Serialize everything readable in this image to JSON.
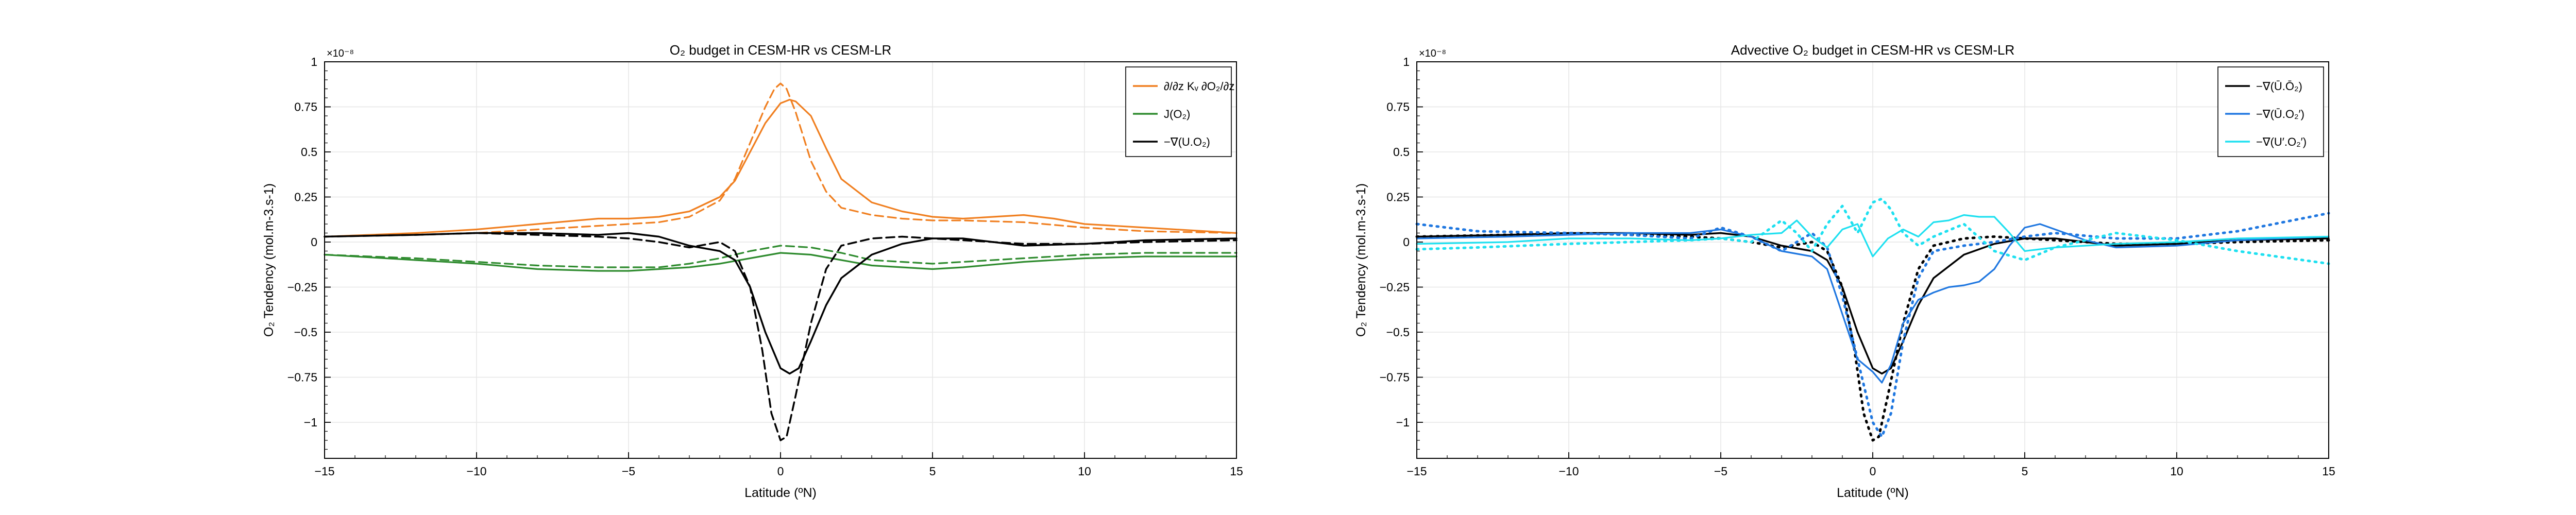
{
  "chart_data": [
    {
      "type": "line",
      "title": "O₂ budget in CESM-HR vs CESM-LR",
      "xlabel": "Latitude (ºN)",
      "ylabel": "O₂ Tendency (mol.m-3.s-1)",
      "y_multiplier": "×10⁻⁸",
      "xlim": [
        -15,
        15
      ],
      "ylim": [
        -1.2,
        1.0
      ],
      "xticks": [
        "−15",
        "−10",
        "−5",
        "0",
        "5",
        "10",
        "15"
      ],
      "yticks": [
        "1",
        "0.75",
        "0.5",
        "0.25",
        "0",
        "−0.25",
        "−0.5",
        "−0.75",
        "−1"
      ],
      "legend_position": "top-right",
      "grid": true,
      "series": [
        {
          "name": "∂/∂z Kv ∂O₂/∂z (HR)",
          "legend_label": "∂/∂z Kᵥ ∂O₂/∂z",
          "color": "#f07f20",
          "dash": "solid",
          "x": [
            -15,
            -12,
            -10,
            -8,
            -6,
            -5,
            -4,
            -3,
            -2,
            -1.5,
            -1,
            -0.5,
            0,
            0.3,
            0.5,
            1,
            1.5,
            2,
            3,
            4,
            5,
            6,
            7,
            8,
            9,
            10,
            12,
            15
          ],
          "y": [
            0.03,
            0.05,
            0.07,
            0.1,
            0.13,
            0.13,
            0.14,
            0.17,
            0.25,
            0.34,
            0.5,
            0.66,
            0.77,
            0.79,
            0.78,
            0.7,
            0.52,
            0.35,
            0.22,
            0.17,
            0.14,
            0.13,
            0.14,
            0.15,
            0.13,
            0.1,
            0.08,
            0.05
          ]
        },
        {
          "name": "∂/∂z Kv ∂O₂/∂z (LR)",
          "color": "#f07f20",
          "dash": "dashed",
          "x": [
            -15,
            -12,
            -10,
            -8,
            -6,
            -5,
            -4,
            -3,
            -2,
            -1.5,
            -1,
            -0.5,
            -0.2,
            0,
            0.2,
            0.5,
            1,
            1.5,
            2,
            3,
            4,
            5,
            6,
            8,
            10,
            12,
            15
          ],
          "y": [
            0.03,
            0.04,
            0.05,
            0.07,
            0.09,
            0.1,
            0.11,
            0.14,
            0.23,
            0.35,
            0.55,
            0.75,
            0.85,
            0.88,
            0.85,
            0.72,
            0.45,
            0.28,
            0.19,
            0.15,
            0.13,
            0.12,
            0.12,
            0.11,
            0.08,
            0.06,
            0.05
          ]
        },
        {
          "name": "J(O₂) (HR)",
          "legend_label": "J(O₂)",
          "color": "#2e8b2e",
          "dash": "solid",
          "x": [
            -15,
            -12,
            -10,
            -8,
            -6,
            -5,
            -4,
            -3,
            -2,
            -1,
            0,
            1,
            2,
            3,
            4,
            5,
            6,
            8,
            10,
            12,
            15
          ],
          "y": [
            -0.07,
            -0.1,
            -0.12,
            -0.15,
            -0.16,
            -0.16,
            -0.15,
            -0.14,
            -0.12,
            -0.09,
            -0.06,
            -0.07,
            -0.1,
            -0.13,
            -0.14,
            -0.15,
            -0.14,
            -0.11,
            -0.09,
            -0.08,
            -0.08
          ]
        },
        {
          "name": "J(O₂) (LR)",
          "color": "#2e8b2e",
          "dash": "dashed",
          "x": [
            -15,
            -12,
            -10,
            -8,
            -6,
            -5,
            -4,
            -3,
            -2,
            -1,
            0,
            1,
            2,
            3,
            4,
            5,
            6,
            8,
            10,
            12,
            15
          ],
          "y": [
            -0.07,
            -0.09,
            -0.11,
            -0.13,
            -0.14,
            -0.14,
            -0.14,
            -0.12,
            -0.09,
            -0.05,
            -0.02,
            -0.03,
            -0.06,
            -0.1,
            -0.11,
            -0.12,
            -0.11,
            -0.09,
            -0.07,
            -0.06,
            -0.06
          ]
        },
        {
          "name": "−∇(U.O₂) (HR)",
          "legend_label": "−∇(U.O₂)",
          "color": "#000000",
          "dash": "solid",
          "x": [
            -15,
            -12,
            -10,
            -8,
            -6,
            -5,
            -4,
            -3,
            -2,
            -1.5,
            -1,
            -0.5,
            0,
            0.3,
            0.6,
            1,
            1.5,
            2,
            3,
            4,
            5,
            6,
            7,
            8,
            10,
            12,
            15
          ],
          "y": [
            0.03,
            0.04,
            0.05,
            0.05,
            0.04,
            0.05,
            0.03,
            -0.02,
            -0.05,
            -0.1,
            -0.25,
            -0.5,
            -0.7,
            -0.73,
            -0.7,
            -0.55,
            -0.35,
            -0.2,
            -0.07,
            -0.01,
            0.02,
            0.02,
            0.0,
            -0.02,
            -0.01,
            0.01,
            0.02
          ]
        },
        {
          "name": "−∇(U.O₂) (LR)",
          "color": "#000000",
          "dash": "dashed",
          "x": [
            -15,
            -12,
            -10,
            -8,
            -6,
            -5,
            -4,
            -3,
            -2,
            -1.5,
            -1,
            -0.6,
            -0.3,
            0,
            0.2,
            0.5,
            1,
            1.5,
            2,
            3,
            4,
            5,
            6,
            8,
            10,
            12,
            15
          ],
          "y": [
            0.03,
            0.04,
            0.05,
            0.04,
            0.03,
            0.02,
            0.0,
            -0.03,
            0.0,
            -0.05,
            -0.25,
            -0.6,
            -0.95,
            -1.1,
            -1.08,
            -0.85,
            -0.45,
            -0.15,
            -0.02,
            0.02,
            0.03,
            0.02,
            0.01,
            -0.01,
            -0.01,
            0.0,
            0.01
          ]
        }
      ]
    },
    {
      "type": "line",
      "title": "Advective O₂ budget in CESM-HR vs CESM-LR",
      "xlabel": "Latitude (ºN)",
      "ylabel": "O₂ Tendency (mol.m-3.s-1)",
      "y_multiplier": "×10⁻⁸",
      "xlim": [
        -15,
        15
      ],
      "ylim": [
        -1.2,
        1.0
      ],
      "xticks": [
        "−15",
        "−10",
        "−5",
        "0",
        "5",
        "10",
        "15"
      ],
      "yticks": [
        "1",
        "0.75",
        "0.5",
        "0.25",
        "0",
        "−0.25",
        "−0.5",
        "−0.75",
        "−1"
      ],
      "legend_position": "top-right",
      "grid": true,
      "series": [
        {
          "name": "−∇(Ū.Ō₂) (HR)",
          "legend_label": "−∇(Ū.Ō₂)",
          "color": "#000000",
          "dash": "solid",
          "x": [
            -15,
            -12,
            -10,
            -8,
            -6,
            -5,
            -4,
            -3,
            -2,
            -1.5,
            -1,
            -0.5,
            0,
            0.3,
            0.6,
            1,
            1.5,
            2,
            3,
            4,
            5,
            6,
            7,
            8,
            10,
            12,
            15
          ],
          "y": [
            0.03,
            0.04,
            0.05,
            0.05,
            0.04,
            0.05,
            0.03,
            -0.02,
            -0.05,
            -0.1,
            -0.25,
            -0.5,
            -0.7,
            -0.73,
            -0.7,
            -0.55,
            -0.35,
            -0.2,
            -0.07,
            -0.01,
            0.02,
            0.02,
            0.0,
            -0.02,
            -0.01,
            0.01,
            0.02
          ]
        },
        {
          "name": "−∇(Ū.Ō₂) (LR)",
          "color": "#000000",
          "dash": "dotted",
          "x": [
            -15,
            -12,
            -10,
            -8,
            -6,
            -5,
            -4,
            -3,
            -2,
            -1.5,
            -1,
            -0.6,
            -0.3,
            0,
            0.2,
            0.5,
            1,
            1.5,
            2,
            3,
            4,
            5,
            6,
            8,
            10,
            12,
            15
          ],
          "y": [
            0.03,
            0.04,
            0.05,
            0.04,
            0.03,
            0.02,
            0.0,
            -0.03,
            0.0,
            -0.05,
            -0.25,
            -0.6,
            -0.95,
            -1.1,
            -1.08,
            -0.85,
            -0.45,
            -0.15,
            -0.02,
            0.02,
            0.03,
            0.02,
            0.01,
            -0.01,
            -0.01,
            0.0,
            0.01
          ]
        },
        {
          "name": "−∇(U.O₂) eddy-mean (HR)",
          "legend_label": "−∇(Ū.O₂′)",
          "color": "#1f77e0",
          "dash": "solid",
          "x": [
            -15,
            -12,
            -10,
            -8,
            -6,
            -5,
            -4,
            -3,
            -2,
            -1.5,
            -1,
            -0.5,
            0,
            0.3,
            0.6,
            1,
            1.5,
            2,
            2.5,
            3,
            3.5,
            4,
            4.5,
            5,
            5.5,
            6,
            7,
            8,
            10,
            12,
            15
          ],
          "y": [
            0.02,
            0.03,
            0.04,
            0.05,
            0.05,
            0.07,
            0.03,
            -0.05,
            -0.08,
            -0.15,
            -0.4,
            -0.65,
            -0.72,
            -0.78,
            -0.68,
            -0.45,
            -0.32,
            -0.28,
            -0.25,
            -0.24,
            -0.22,
            -0.15,
            -0.02,
            0.08,
            0.1,
            0.07,
            0.01,
            -0.03,
            -0.02,
            0.01,
            0.03
          ]
        },
        {
          "name": "−∇(U.O₂) eddy-mean (LR)",
          "color": "#1f77e0",
          "dash": "dotted",
          "x": [
            -15,
            -13,
            -10,
            -8,
            -6,
            -5,
            -4,
            -3,
            -2,
            -1.5,
            -1,
            -0.5,
            0,
            0.3,
            0.6,
            1,
            1.5,
            2,
            3,
            4,
            5,
            6,
            8,
            10,
            12,
            15
          ],
          "y": [
            0.1,
            0.06,
            0.05,
            0.04,
            0.02,
            0.08,
            0.03,
            -0.05,
            0.05,
            -0.03,
            -0.3,
            -0.65,
            -1.0,
            -1.08,
            -0.95,
            -0.55,
            -0.2,
            -0.05,
            -0.02,
            0.0,
            0.03,
            0.05,
            0.02,
            0.02,
            0.06,
            0.16
          ]
        },
        {
          "name": "−∇(U′.O₂′) (HR)",
          "legend_label": "−∇(U′.O₂′)",
          "color": "#1ee0f0",
          "dash": "solid",
          "x": [
            -15,
            -12,
            -10,
            -8,
            -6,
            -5,
            -4,
            -3,
            -2.5,
            -2,
            -1.5,
            -1,
            -0.5,
            0,
            0.5,
            1,
            1.5,
            2,
            2.5,
            3,
            3.5,
            4,
            4.5,
            5,
            6,
            8,
            10,
            12,
            15
          ],
          "y": [
            -0.01,
            0.0,
            0.02,
            0.02,
            0.01,
            0.02,
            0.04,
            0.05,
            0.12,
            0.03,
            -0.03,
            0.07,
            0.1,
            -0.08,
            0.02,
            0.07,
            0.03,
            0.11,
            0.12,
            0.15,
            0.14,
            0.14,
            0.05,
            -0.05,
            -0.03,
            -0.01,
            0.0,
            0.02,
            0.03
          ]
        },
        {
          "name": "−∇(U′.O₂′) (LR)",
          "color": "#1ee0f0",
          "dash": "dotted",
          "x": [
            -15,
            -13,
            -10,
            -8,
            -6,
            -5,
            -4,
            -3,
            -2.5,
            -2,
            -1.5,
            -1,
            -0.5,
            0,
            0.3,
            0.6,
            1,
            1.5,
            2,
            3,
            4,
            5,
            6,
            8,
            10,
            12,
            15
          ],
          "y": [
            -0.04,
            -0.03,
            -0.01,
            0.0,
            0.01,
            0.02,
            0.0,
            0.12,
            0.05,
            -0.05,
            0.1,
            0.2,
            0.05,
            0.22,
            0.24,
            0.18,
            0.05,
            -0.02,
            0.03,
            0.1,
            -0.05,
            -0.1,
            -0.03,
            0.05,
            0.01,
            -0.05,
            -0.12
          ]
        }
      ]
    }
  ]
}
